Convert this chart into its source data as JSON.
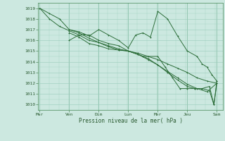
{
  "xlabel": "Pression niveau de la mer( hPa )",
  "bg_color": "#cce8e0",
  "grid_color": "#99ccbb",
  "line_color": "#2d6e3a",
  "ylim": [
    1009.5,
    1019.5
  ],
  "yticks": [
    1010,
    1011,
    1012,
    1013,
    1014,
    1015,
    1016,
    1017,
    1018,
    1019
  ],
  "day_labels": [
    "Mar",
    "Ven",
    "Dim",
    "Lun",
    "Mer",
    "Jeu",
    "Sam"
  ],
  "day_positions": [
    0,
    1,
    2,
    3,
    4,
    5,
    6
  ],
  "xlim": [
    -0.05,
    6.2
  ],
  "line1_x": [
    0.0,
    0.33,
    0.67,
    1.0,
    1.33,
    1.67,
    2.0,
    2.33,
    2.67,
    3.0,
    3.33,
    3.67,
    4.0,
    4.33,
    4.67,
    5.0,
    5.33,
    5.67,
    6.0
  ],
  "line1_y": [
    1019.0,
    1018.5,
    1018.0,
    1017.0,
    1016.7,
    1016.2,
    1015.8,
    1015.4,
    1015.1,
    1015.0,
    1014.8,
    1014.5,
    1014.2,
    1013.8,
    1013.4,
    1013.0,
    1012.5,
    1012.2,
    1012.0
  ],
  "line2_x": [
    0.0,
    0.33,
    0.67,
    1.0,
    1.33,
    1.67,
    2.0,
    2.33,
    2.67,
    3.0,
    3.33,
    3.67,
    4.0,
    4.33,
    4.67,
    5.0,
    5.33,
    5.67,
    6.0
  ],
  "line2_y": [
    1019.0,
    1018.0,
    1017.3,
    1016.9,
    1016.5,
    1016.0,
    1015.8,
    1015.5,
    1015.2,
    1015.0,
    1014.7,
    1014.2,
    1013.7,
    1013.1,
    1012.5,
    1011.9,
    1011.5,
    1011.2,
    1012.0
  ],
  "line3_x": [
    1.0,
    1.33,
    1.5,
    1.67,
    2.0,
    2.33,
    2.67,
    3.0,
    3.25,
    3.5,
    3.75,
    4.0,
    4.33,
    4.67,
    5.0,
    5.33,
    5.5,
    5.67,
    5.83,
    6.0
  ],
  "line3_y": [
    1017.0,
    1016.8,
    1016.6,
    1016.4,
    1017.0,
    1016.5,
    1016.0,
    1015.3,
    1016.5,
    1016.7,
    1016.3,
    1018.7,
    1018.0,
    1016.4,
    1015.0,
    1014.5,
    1013.8,
    1013.5,
    1012.8,
    1012.2
  ],
  "line4_x": [
    1.0,
    1.33,
    1.67,
    2.0,
    2.33,
    2.67,
    3.0,
    3.33,
    3.67,
    4.0,
    4.33,
    4.67,
    5.0,
    5.25,
    5.5,
    5.75,
    5.9,
    6.0
  ],
  "line4_y": [
    1016.7,
    1016.3,
    1015.7,
    1015.5,
    1015.2,
    1015.1,
    1015.0,
    1014.7,
    1014.3,
    1013.7,
    1013.0,
    1012.3,
    1011.7,
    1011.5,
    1011.5,
    1011.3,
    1010.0,
    1012.0
  ],
  "line5_x": [
    1.0,
    1.33,
    1.67,
    2.0,
    2.33,
    2.67,
    3.0,
    3.5,
    4.0,
    4.25,
    4.5,
    4.75,
    5.0,
    5.25,
    5.5,
    5.75,
    5.9,
    6.0
  ],
  "line5_y": [
    1016.0,
    1016.5,
    1016.5,
    1016.0,
    1015.7,
    1015.5,
    1015.0,
    1014.5,
    1014.5,
    1013.5,
    1012.5,
    1011.5,
    1011.5,
    1011.5,
    1011.5,
    1011.7,
    1010.0,
    1012.2
  ]
}
